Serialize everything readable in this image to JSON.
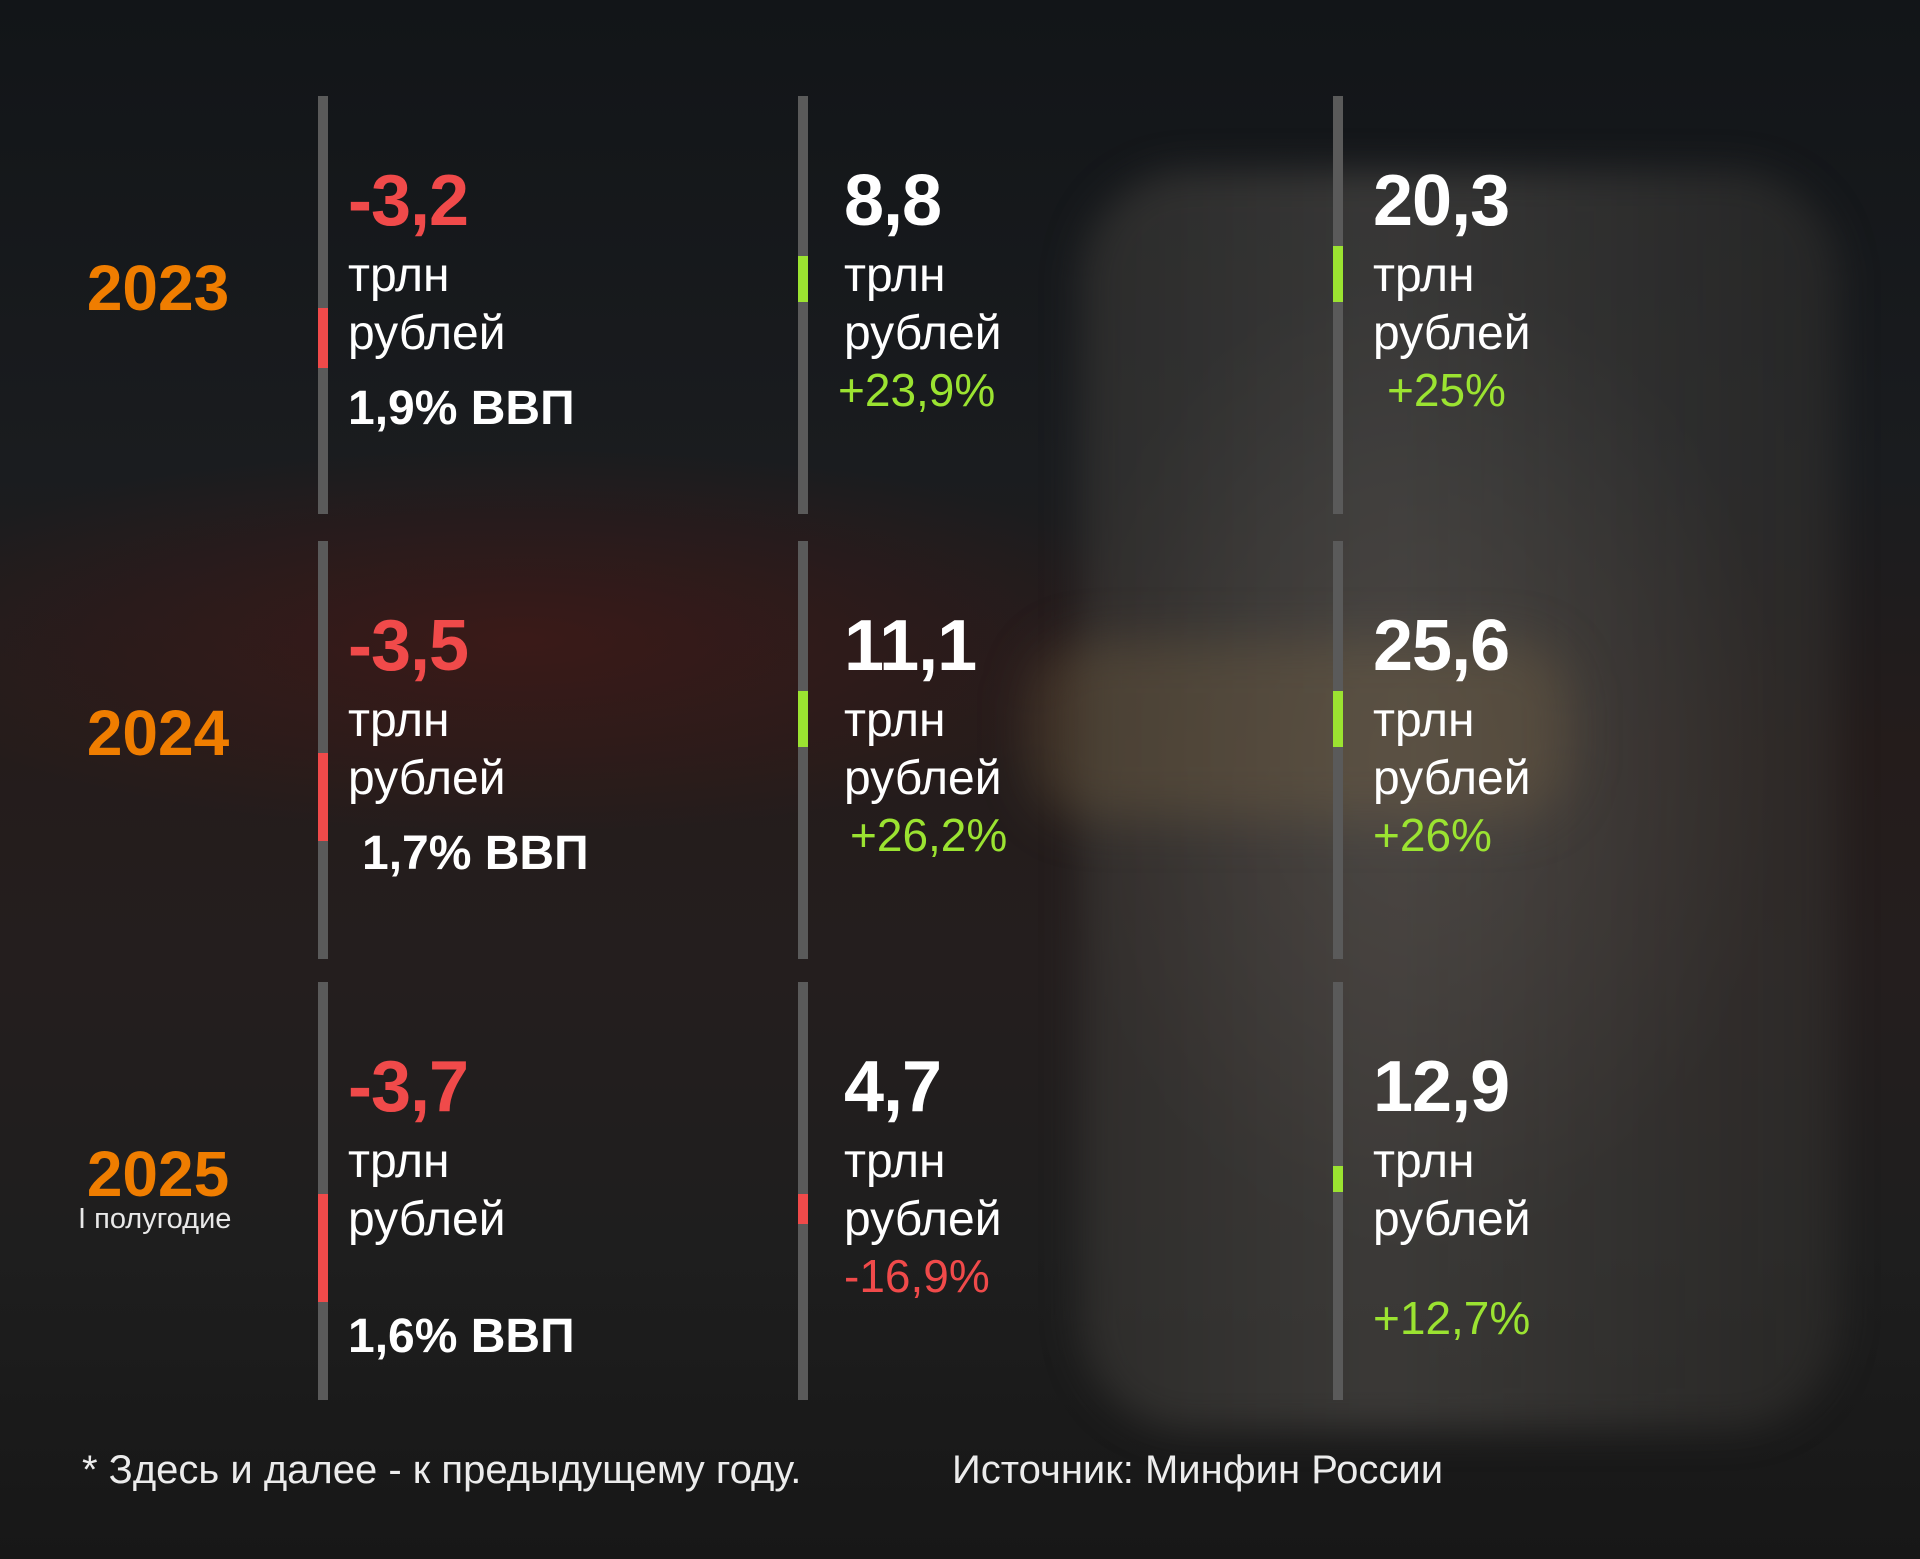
{
  "rows": [
    {
      "year": "2023",
      "deficit": {
        "value": "-3,2",
        "unit1": "трлн",
        "unit2": "рублей",
        "gdp": "1,9% ВВП"
      },
      "col2": {
        "value": "8,8",
        "unit1": "трлн",
        "unit2": "рублей",
        "change": "+23,9%"
      },
      "col3": {
        "value": "20,3",
        "unit1": "трлн",
        "unit2": "рублей",
        "change": "+25%"
      }
    },
    {
      "year": "2024",
      "deficit": {
        "value": "-3,5",
        "unit1": "трлн",
        "unit2": "рублей",
        "gdp": "1,7% ВВП"
      },
      "col2": {
        "value": "11,1",
        "unit1": "трлн",
        "unit2": "рублей",
        "change": "+26,2%"
      },
      "col3": {
        "value": "25,6",
        "unit1": "трлн",
        "unit2": "рублей",
        "change": "+26%"
      }
    },
    {
      "year": "2025",
      "year_sub": "I полугодие",
      "deficit": {
        "value": "-3,7",
        "unit1": "трлн",
        "unit2": "рублей",
        "gdp": "1,6% ВВП"
      },
      "col2": {
        "value": "4,7",
        "unit1": "трлн",
        "unit2": "рублей",
        "change": "-16,9%"
      },
      "col3": {
        "value": "12,9",
        "unit1": "трлн",
        "unit2": "рублей",
        "change": "+12,7%"
      }
    }
  ],
  "footer": {
    "note": "* Здесь и далее - к предыдущему году.",
    "source": "Источник: Минфин России"
  },
  "colors": {
    "accent": "#ef7d00",
    "negative": "#f04a4a",
    "positive": "#9be331",
    "bar": "#5a5a5a"
  }
}
